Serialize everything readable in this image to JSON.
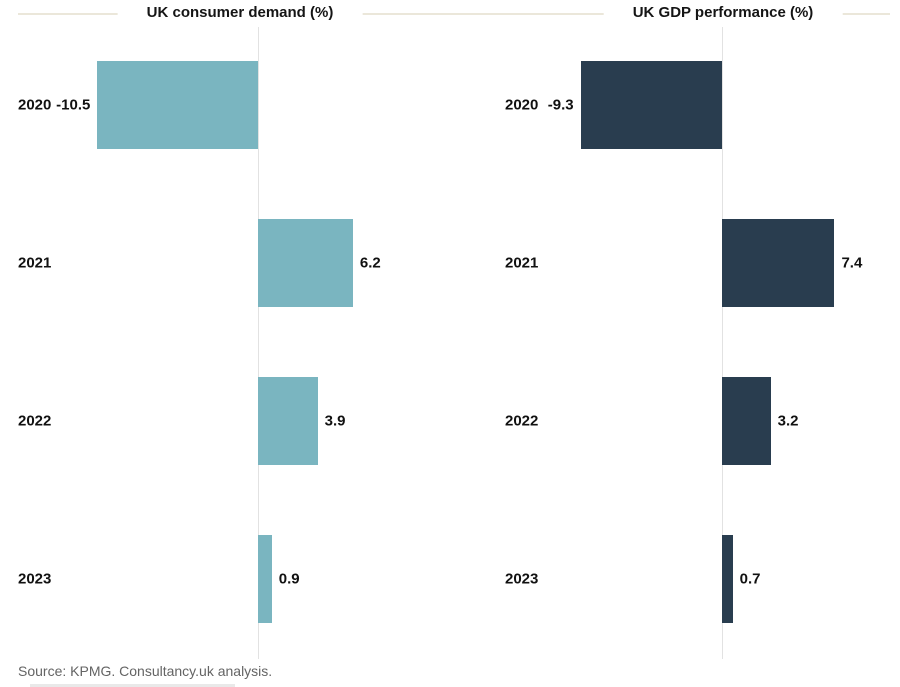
{
  "page": {
    "background": "#ffffff",
    "divider_color": "#ebe7da"
  },
  "chart_data": [
    {
      "type": "bar",
      "orientation": "horizontal",
      "title": "UK consumer demand (%)",
      "categories": [
        "2020",
        "2021",
        "2022",
        "2023"
      ],
      "values": [
        -10.5,
        6.2,
        3.9,
        0.9
      ],
      "data_labels": [
        "-10.5",
        "6.2",
        "3.9",
        "0.9"
      ],
      "bar_color": "#7ab5c0",
      "axis_color": "#e2e2e2",
      "label_color": "#111111",
      "grid": false,
      "legend": "none",
      "xlim": [
        -10.5,
        7.4
      ],
      "baseline": 0
    },
    {
      "type": "bar",
      "orientation": "horizontal",
      "title": "UK GDP performance (%)",
      "categories": [
        "2020",
        "2021",
        "2022",
        "2023"
      ],
      "values": [
        -9.3,
        7.4,
        3.2,
        0.7
      ],
      "data_labels": [
        "-9.3",
        "7.4",
        "3.2",
        "0.7"
      ],
      "bar_color": "#293d4f",
      "axis_color": "#e2e2e2",
      "label_color": "#111111",
      "grid": false,
      "legend": "none",
      "xlim": [
        -10.5,
        7.4
      ],
      "baseline": 0
    }
  ],
  "source": {
    "text": "Source: KPMG. Consultancy.uk analysis."
  }
}
